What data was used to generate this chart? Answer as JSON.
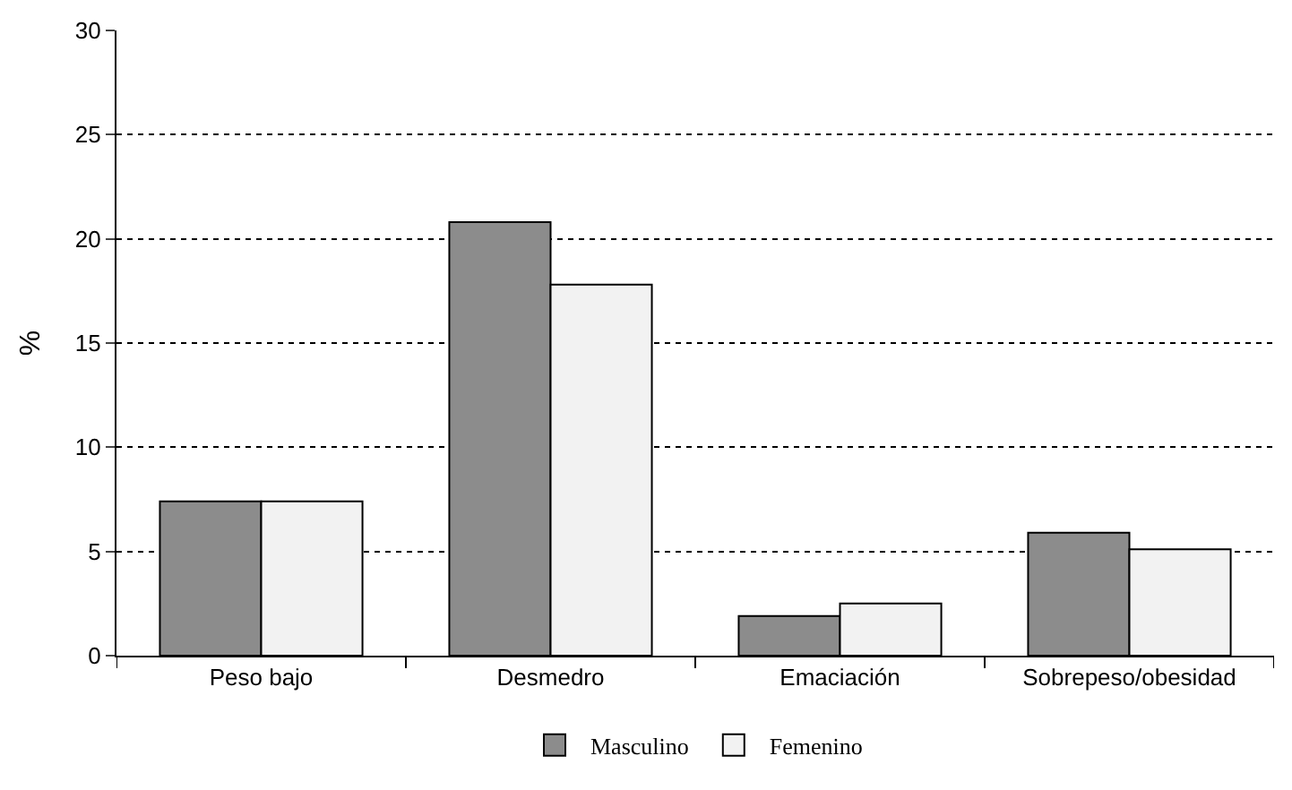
{
  "chart_data": {
    "type": "bar",
    "ylabel": "%",
    "categories": [
      "Peso bajo",
      "Desmedro",
      "Emaciación",
      "Sobrepeso/obesidad"
    ],
    "series": [
      {
        "name": "Masculino",
        "color": "#8c8c8c",
        "values": [
          7.4,
          20.8,
          1.9,
          5.9
        ]
      },
      {
        "name": "Femenino",
        "color": "#f2f2f2",
        "values": [
          7.4,
          17.8,
          2.5,
          5.1
        ]
      }
    ],
    "ylim": [
      0,
      30
    ],
    "yticks": [
      0,
      5,
      10,
      15,
      20,
      25,
      30
    ],
    "grid": "y",
    "legend": "bottom"
  }
}
